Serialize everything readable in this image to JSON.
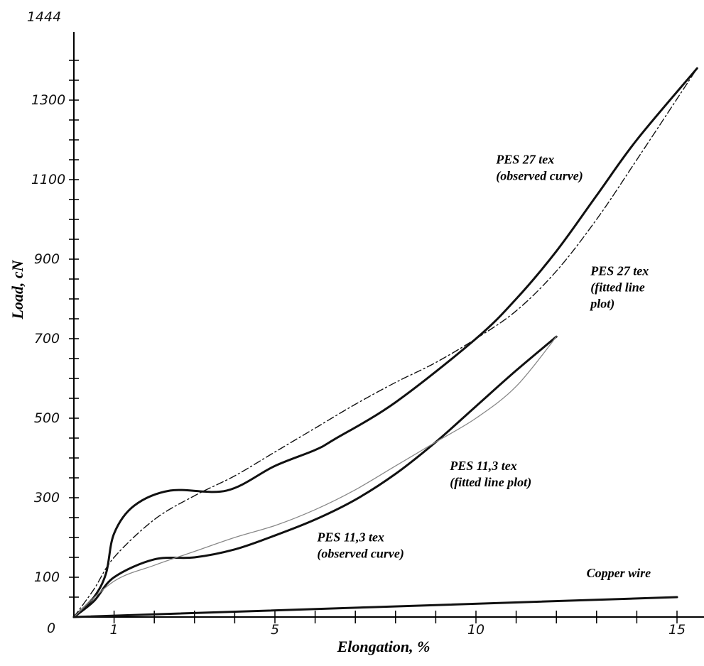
{
  "chart_data": {
    "type": "line",
    "xlabel": "Elongation, %",
    "ylabel": "Load, cN",
    "xlim": [
      0,
      15.5
    ],
    "ylim": [
      0,
      1444
    ],
    "x_tick_labels": [
      "1",
      "5",
      "10",
      "15"
    ],
    "x_tick_values": [
      1,
      5,
      10,
      15
    ],
    "y_tick_labels": [
      "0",
      "100",
      "300",
      "500",
      "700",
      "900",
      "1100",
      "1300",
      "1444"
    ],
    "y_tick_values": [
      0,
      100,
      300,
      500,
      700,
      900,
      1100,
      1300,
      1444
    ],
    "grid": false,
    "series": [
      {
        "name": "PES 27 tex (observed curve)",
        "style": "solid-bold",
        "points": [
          [
            0,
            0
          ],
          [
            0.5,
            50
          ],
          [
            0.8,
            110
          ],
          [
            1,
            210
          ],
          [
            1.5,
            280
          ],
          [
            2.4,
            318
          ],
          [
            3.8,
            318
          ],
          [
            5,
            380
          ],
          [
            6,
            420
          ],
          [
            6.5,
            448
          ],
          [
            8,
            540
          ],
          [
            10,
            700
          ],
          [
            11,
            800
          ],
          [
            12,
            920
          ],
          [
            13,
            1060
          ],
          [
            14,
            1200
          ],
          [
            15.5,
            1380
          ]
        ]
      },
      {
        "name": "PES 27 tex (fitted line plot)",
        "style": "dash-dot",
        "points": [
          [
            0,
            0
          ],
          [
            0.5,
            70
          ],
          [
            1,
            150
          ],
          [
            2,
            245
          ],
          [
            3,
            305
          ],
          [
            4,
            355
          ],
          [
            5,
            415
          ],
          [
            6,
            475
          ],
          [
            7,
            535
          ],
          [
            8,
            590
          ],
          [
            9,
            640
          ],
          [
            10,
            700
          ],
          [
            11,
            770
          ],
          [
            12,
            870
          ],
          [
            13,
            1000
          ],
          [
            14,
            1150
          ],
          [
            15.5,
            1380
          ]
        ]
      },
      {
        "name": "PES 11,3 tex (observed curve)",
        "style": "solid-bold",
        "points": [
          [
            0,
            0
          ],
          [
            0.5,
            40
          ],
          [
            1,
            100
          ],
          [
            2,
            145
          ],
          [
            3,
            150
          ],
          [
            4,
            170
          ],
          [
            5,
            205
          ],
          [
            6,
            245
          ],
          [
            7,
            295
          ],
          [
            8,
            360
          ],
          [
            9,
            440
          ],
          [
            10,
            530
          ],
          [
            11,
            620
          ],
          [
            12,
            705
          ]
        ]
      },
      {
        "name": "PES 11,3 tex (fitted line plot)",
        "style": "thin-gray",
        "points": [
          [
            0,
            0
          ],
          [
            1,
            90
          ],
          [
            2,
            130
          ],
          [
            3,
            165
          ],
          [
            4,
            200
          ],
          [
            5,
            230
          ],
          [
            6,
            270
          ],
          [
            7,
            320
          ],
          [
            8,
            380
          ],
          [
            9,
            440
          ],
          [
            10,
            500
          ],
          [
            11,
            580
          ],
          [
            12,
            705
          ]
        ]
      },
      {
        "name": "Copper wire",
        "style": "solid-bold",
        "points": [
          [
            0,
            0
          ],
          [
            15,
            50
          ]
        ]
      }
    ],
    "annotations": [
      {
        "lines": [
          "PES 27 tex",
          "(observed curve)"
        ],
        "x": 10.5,
        "y": 1140
      },
      {
        "lines": [
          "PES 27 tex",
          "(fitted line",
          "plot)"
        ],
        "x": 12.85,
        "y": 860
      },
      {
        "lines": [
          "PES 11,3 tex",
          "(fitted line plot)"
        ],
        "x": 9.35,
        "y": 370
      },
      {
        "lines": [
          "PES 11,3 tex",
          "(observed curve)"
        ],
        "x": 6.05,
        "y": 190
      },
      {
        "lines": [
          "Copper wire"
        ],
        "x": 12.75,
        "y": 100
      }
    ]
  }
}
